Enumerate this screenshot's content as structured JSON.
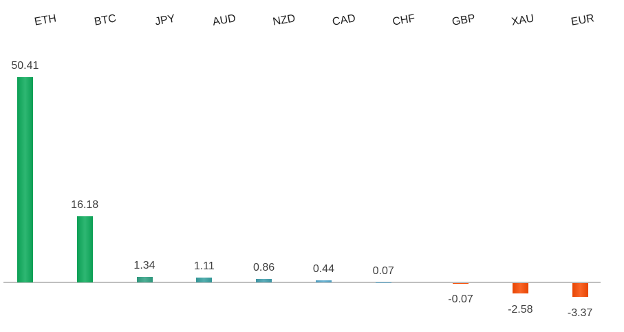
{
  "chart_data": {
    "type": "bar",
    "title": "",
    "xlabel": "",
    "ylabel": "",
    "categories": [
      "ETH",
      "BTC",
      "JPY",
      "AUD",
      "NZD",
      "CAD",
      "CHF",
      "GBP",
      "XAU",
      "EUR"
    ],
    "values": [
      50.41,
      16.18,
      1.34,
      1.11,
      0.86,
      0.44,
      0.07,
      -0.07,
      -2.58,
      -3.37
    ],
    "value_labels": [
      "50.41",
      "16.18",
      "1.34",
      "1.11",
      "0.86",
      "0.44",
      "0.07",
      "-0.07",
      "-2.58",
      "-3.37"
    ],
    "bar_colors": [
      "#0cab5b",
      "#0cab5b",
      "#31a184",
      "#36a0a0",
      "#419fae",
      "#55a8cc",
      "#63a9c9",
      "#f8520a",
      "#f84b04",
      "#f84b04"
    ],
    "positive_color": "#0cab5b",
    "negative_color": "#f84b04",
    "axis_color": "#bfbfbf",
    "value_label_color": "#404040",
    "category_label_color": "#1f1f1f",
    "ylim": [
      -3.37,
      50.41
    ],
    "grid": false,
    "legend": false,
    "value_label_position": "outside-end",
    "category_label_position": "top",
    "category_label_rotation_deg": -10
  }
}
